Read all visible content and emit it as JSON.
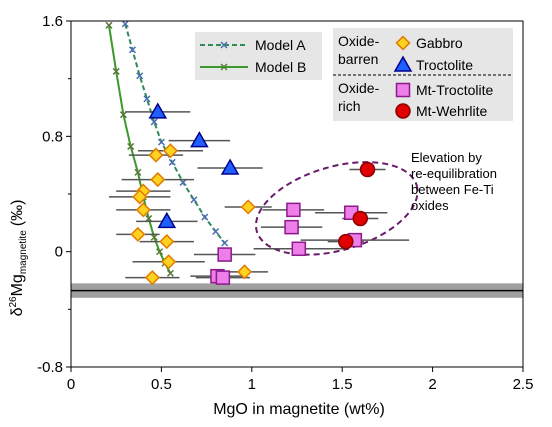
{
  "chart_data": {
    "type": "scatter",
    "xlabel": "MgO in magnetite (wt%)",
    "ylabel_main": "δ",
    "ylabel_sup": "26",
    "ylabel_mg": "Mg",
    "ylabel_sub": "magnetite",
    "ylabel_unit": "(‰)",
    "xlim": [
      0,
      2.5
    ],
    "ylim": [
      -0.8,
      1.6
    ],
    "xticks": [
      "0",
      "0.5",
      "1",
      "1.5",
      "2",
      "2.5"
    ],
    "xtick_values": [
      0,
      0.5,
      1,
      1.5,
      2,
      2.5
    ],
    "yticks": [
      "-0.8",
      "0",
      "0.8",
      "1.6"
    ],
    "ytick_values": [
      -0.8,
      0,
      0.8,
      1.6
    ],
    "reference_band": {
      "center": -0.27,
      "half_width": 0.05,
      "color": "#a0a0a0"
    },
    "models": [
      {
        "name": "Model A",
        "color": "#2e8b57",
        "marker_color": "#4a6fb0",
        "dashed": true,
        "points": [
          [
            0.3,
            1.58
          ],
          [
            0.34,
            1.4
          ],
          [
            0.38,
            1.22
          ],
          [
            0.42,
            1.06
          ],
          [
            0.46,
            0.9
          ],
          [
            0.5,
            0.76
          ],
          [
            0.56,
            0.62
          ],
          [
            0.62,
            0.48
          ],
          [
            0.68,
            0.36
          ],
          [
            0.74,
            0.24
          ],
          [
            0.8,
            0.14
          ],
          [
            0.85,
            0.06
          ]
        ]
      },
      {
        "name": "Model B",
        "color": "#3a9a2a",
        "marker_color": "#5a7a3a",
        "dashed": false,
        "points": [
          [
            0.21,
            1.57
          ],
          [
            0.25,
            1.25
          ],
          [
            0.29,
            0.95
          ],
          [
            0.33,
            0.73
          ],
          [
            0.37,
            0.55
          ],
          [
            0.4,
            0.38
          ],
          [
            0.43,
            0.23
          ],
          [
            0.46,
            0.1
          ],
          [
            0.49,
            0.0
          ],
          [
            0.52,
            -0.08
          ],
          [
            0.55,
            -0.15
          ]
        ]
      }
    ],
    "groups": [
      {
        "label": "Oxide-",
        "label2": "barren"
      },
      {
        "label": "Oxide-",
        "label2": "rich"
      }
    ],
    "series": [
      {
        "name": "Gabbro",
        "marker": "diamond",
        "fill": "#ffd21f",
        "stroke": "#e07a00",
        "points": [
          {
            "x": 0.45,
            "y": -0.18,
            "xerr": 0.15
          },
          {
            "x": 0.55,
            "y": 0.7,
            "xerr": 0.18
          },
          {
            "x": 0.47,
            "y": 0.67,
            "xerr": 0.15
          },
          {
            "x": 0.48,
            "y": 0.5,
            "xerr": 0.2
          },
          {
            "x": 0.4,
            "y": 0.42,
            "xerr": 0.15
          },
          {
            "x": 0.38,
            "y": 0.38,
            "xerr": 0.17
          },
          {
            "x": 0.4,
            "y": 0.29,
            "xerr": 0.15
          },
          {
            "x": 0.37,
            "y": 0.12,
            "xerr": 0.12
          },
          {
            "x": 0.53,
            "y": 0.07,
            "xerr": 0.15
          },
          {
            "x": 0.54,
            "y": -0.07,
            "xerr": 0.2
          },
          {
            "x": 0.98,
            "y": 0.31,
            "xerr": 0.13
          },
          {
            "x": 0.96,
            "y": -0.14,
            "xerr": 0.13
          }
        ]
      },
      {
        "name": "Troctolite",
        "marker": "triangle",
        "fill": "#1f5fff",
        "stroke": "#00008b",
        "points": [
          {
            "x": 0.48,
            "y": 0.97,
            "xerr": 0.18
          },
          {
            "x": 0.71,
            "y": 0.77,
            "xerr": 0.17
          },
          {
            "x": 0.88,
            "y": 0.58,
            "xerr": 0.18
          },
          {
            "x": 0.53,
            "y": 0.21,
            "xerr": 0.17
          }
        ]
      },
      {
        "name": "Mt-Troctolite",
        "marker": "square",
        "fill": "#ee7ee8",
        "stroke": "#8b1a8b",
        "points": [
          {
            "x": 0.85,
            "y": -0.02,
            "xerr": 0.17
          },
          {
            "x": 0.81,
            "y": -0.17,
            "xerr": 0.15
          },
          {
            "x": 0.84,
            "y": -0.18,
            "xerr": 0.15
          },
          {
            "x": 1.23,
            "y": 0.29,
            "xerr": 0.17
          },
          {
            "x": 1.22,
            "y": 0.17,
            "xerr": 0.17
          },
          {
            "x": 1.26,
            "y": 0.02,
            "xerr": 0.25
          },
          {
            "x": 1.55,
            "y": 0.27,
            "xerr": 0.2
          },
          {
            "x": 1.57,
            "y": 0.08,
            "xerr": 0.3
          }
        ]
      },
      {
        "name": "Mt-Wehrlite",
        "marker": "circle",
        "fill": "#e00000",
        "stroke": "#8b0000",
        "points": [
          {
            "x": 1.64,
            "y": 0.57,
            "xerr": 0.1
          },
          {
            "x": 1.6,
            "y": 0.23,
            "xerr": 0.1
          },
          {
            "x": 1.52,
            "y": 0.07,
            "xerr": 0.1
          }
        ]
      }
    ],
    "ellipse": {
      "cx": 1.47,
      "cy": 0.3,
      "rx": 0.46,
      "ry": 0.29,
      "angle_deg": -16,
      "color": "#6a1a6a"
    },
    "annotation": [
      "Elevation by",
      "re-equilibration",
      "between Fe-Ti",
      "oxides"
    ]
  }
}
